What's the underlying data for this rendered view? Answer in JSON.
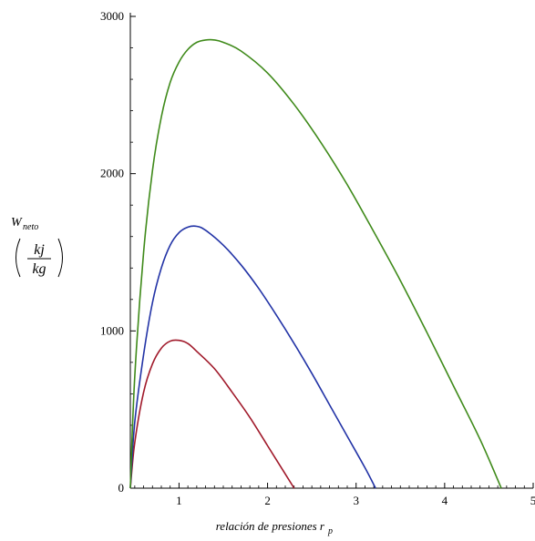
{
  "chart_data": {
    "type": "line",
    "xlabel": "relación de presiones r",
    "xlabel_subscript": "p",
    "ylabel": "W",
    "ylabel_subscript": "neto",
    "y_unit_numerator": "kj",
    "y_unit_denominator": "kg",
    "xlim": [
      0.45,
      5.0
    ],
    "ylim": [
      0,
      3000
    ],
    "x_ticks": [
      1,
      2,
      3,
      4,
      5
    ],
    "y_ticks": [
      0,
      1000,
      2000,
      3000
    ],
    "x_tick_labels": [
      "1",
      "2",
      "3",
      "4",
      "5"
    ],
    "y_tick_labels": [
      "0",
      "1000",
      "2000",
      "3000"
    ],
    "grid": false,
    "legend": "none",
    "series": [
      {
        "color": "#a0192a",
        "x": [
          0.45,
          0.5,
          0.6,
          0.7,
          0.8,
          0.9,
          1.0,
          1.1,
          1.2,
          1.4,
          1.6,
          1.8,
          2.0,
          2.2,
          2.3
        ],
        "y": [
          0,
          290,
          610,
          790,
          890,
          935,
          940,
          920,
          870,
          760,
          610,
          450,
          270,
          90,
          0
        ]
      },
      {
        "color": "#2233a6",
        "x": [
          0.45,
          0.5,
          0.6,
          0.7,
          0.8,
          0.9,
          1.0,
          1.1,
          1.2,
          1.3,
          1.5,
          1.7,
          1.9,
          2.1,
          2.3,
          2.5,
          2.7,
          2.9,
          3.1,
          3.22
        ],
        "y": [
          0,
          420,
          850,
          1180,
          1400,
          1545,
          1625,
          1660,
          1665,
          1640,
          1545,
          1420,
          1270,
          1100,
          920,
          730,
          530,
          330,
          130,
          0
        ]
      },
      {
        "color": "#3f8a1a",
        "x": [
          0.45,
          0.5,
          0.6,
          0.7,
          0.8,
          0.9,
          1.0,
          1.1,
          1.2,
          1.3,
          1.4,
          1.5,
          1.7,
          2.0,
          2.3,
          2.6,
          2.9,
          3.2,
          3.5,
          3.8,
          4.1,
          4.4,
          4.64
        ],
        "y": [
          0,
          710,
          1500,
          2020,
          2360,
          2580,
          2710,
          2790,
          2835,
          2850,
          2850,
          2835,
          2780,
          2640,
          2440,
          2200,
          1930,
          1630,
          1320,
          990,
          650,
          310,
          0
        ]
      }
    ]
  }
}
